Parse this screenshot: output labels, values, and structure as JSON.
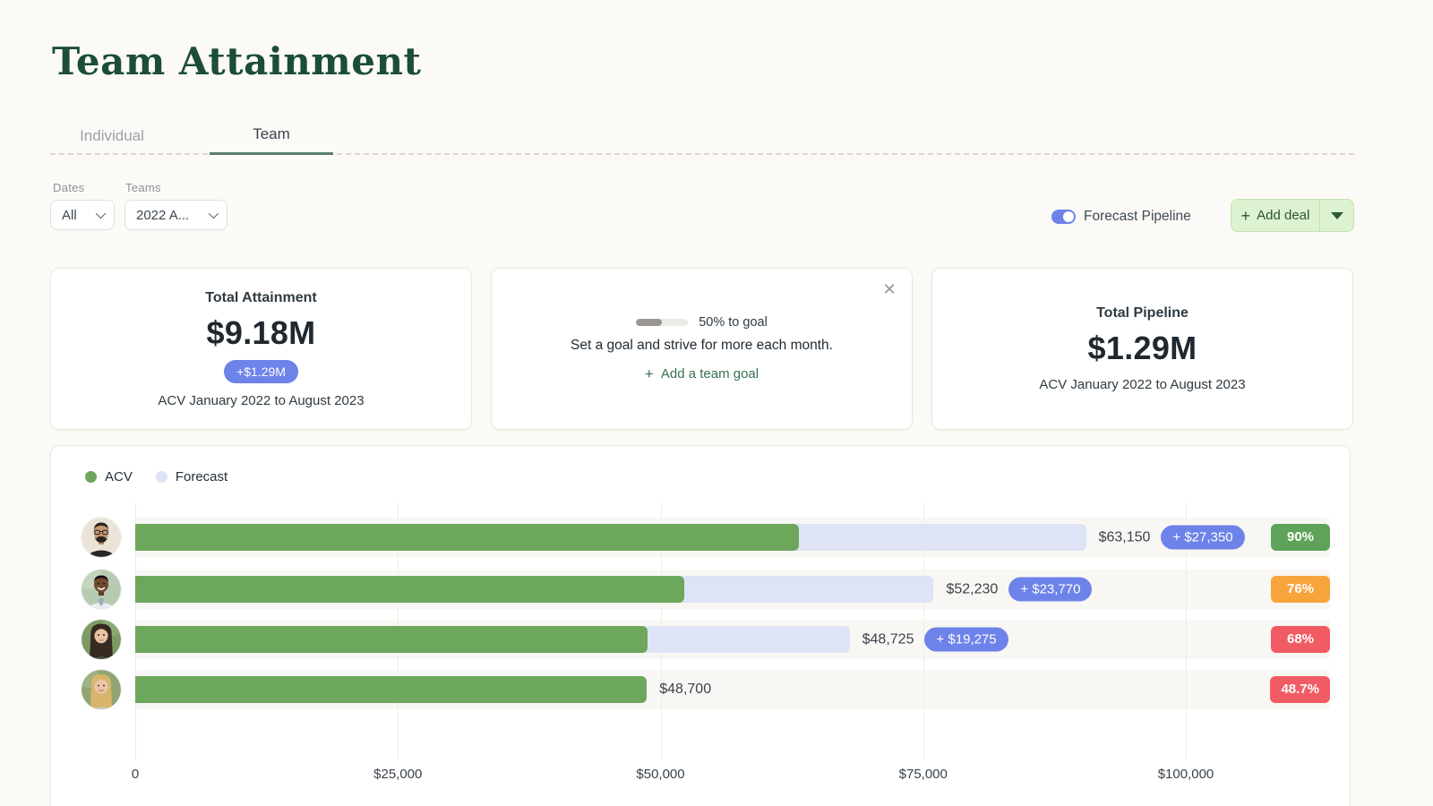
{
  "page_title": "Team Attainment",
  "tabs": [
    {
      "label": "Individual",
      "active": false
    },
    {
      "label": "Team",
      "active": true
    }
  ],
  "filters": {
    "dates_label": "Dates",
    "dates_value": "All",
    "teams_label": "Teams",
    "teams_value": "2022 A..."
  },
  "toolbar": {
    "forecast_toggle_label": "Forecast Pipeline",
    "toggle_on": true,
    "add_deal_label": "Add deal"
  },
  "icons": {
    "plus": "+",
    "close": "✕"
  },
  "cards": {
    "attainment": {
      "title": "Total Attainment",
      "value": "$9.18M",
      "delta_badge": "+$1.29M",
      "subtitle": "ACV January 2022 to August 2023"
    },
    "goal": {
      "progress_pct": 50,
      "progress_label": "50% to goal",
      "message": "Set a goal and strive for more each month.",
      "cta_label": "Add a team goal"
    },
    "pipeline": {
      "title": "Total Pipeline",
      "value": "$1.29M",
      "subtitle": "ACV January 2022 to August 2023"
    }
  },
  "chart_data": {
    "type": "bar",
    "orientation": "horizontal",
    "legend": [
      {
        "label": "ACV",
        "color": "#6CA75C"
      },
      {
        "label": "Forecast",
        "color": "#DEE3F5"
      }
    ],
    "x_axis": {
      "max": 100000,
      "tick_values": [
        0,
        25000,
        50000,
        75000,
        100000
      ],
      "tick_labels": [
        "0",
        "$25,000",
        "$50,000",
        "$75,000",
        "$100,000"
      ]
    },
    "rows": [
      {
        "acv": 63150,
        "acv_label": "$63,150",
        "forecast": 27350,
        "forecast_label": "+ $27,350",
        "attainment_pct_label": "90%",
        "attainment_level": "green"
      },
      {
        "acv": 52230,
        "acv_label": "$52,230",
        "forecast": 23770,
        "forecast_label": "+ $23,770",
        "attainment_pct_label": "76%",
        "attainment_level": "orange"
      },
      {
        "acv": 48725,
        "acv_label": "$48,725",
        "forecast": 19275,
        "forecast_label": "+ $19,275",
        "attainment_pct_label": "68%",
        "attainment_level": "red"
      },
      {
        "acv": 48700,
        "acv_label": "$48,700",
        "forecast": 0,
        "forecast_label": "",
        "attainment_pct_label": "48.7%",
        "attainment_level": "red"
      }
    ]
  },
  "colors": {
    "accent_blue": "#6D83E9",
    "bar_green": "#6CA75C",
    "bar_forecast": "#DEE3F5",
    "badge_green": "#5FA35A",
    "badge_orange": "#F7A43B",
    "badge_red": "#F15B63",
    "title_green": "#1B4D3A",
    "button_green_bg": "#DDF2D0"
  }
}
